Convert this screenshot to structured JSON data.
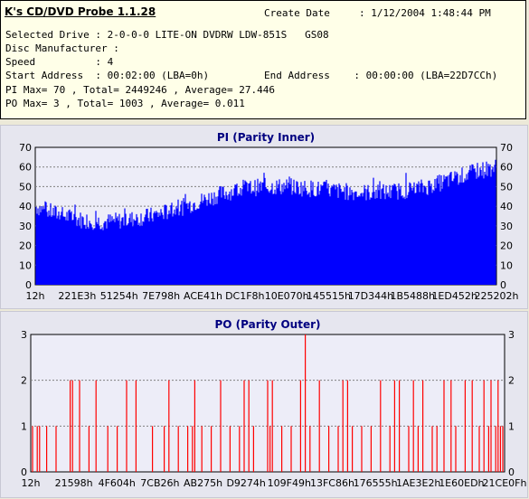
{
  "app": {
    "title": "K's CD/DVD Probe 1.1.28",
    "create_date_label": "Create Date",
    "create_date_value": ": 1/12/2004 1:48:44 PM"
  },
  "info": {
    "drive": "Selected Drive : 2-0-0-0 LITE-ON DVDRW LDW-851S   GS08",
    "manufacturer": "Disc Manufacturer :",
    "speed": "Speed          : 4",
    "start_address": "Start Address  : 00:02:00 (LBA=0h)",
    "end_address": "End Address    : 00:00:00 (LBA=22D7CCh)",
    "pi_stats": "PI Max= 70 , Total= 2449246 , Average= 27.446",
    "po_stats": "PO Max= 3 , Total= 1003 , Average= 0.011"
  },
  "chart_data": [
    {
      "type": "bar",
      "title": "PI (Parity Inner)",
      "color": "#0000ff",
      "ylim": [
        0,
        70
      ],
      "yticks": [
        0,
        10,
        20,
        30,
        40,
        50,
        60,
        70
      ],
      "x_tick_labels": [
        "12h",
        "221E3h",
        "51254h",
        "7E798h",
        "ACE41h",
        "DC1F8h",
        "10E070h",
        "145515h",
        "17D344h",
        "1B5488h",
        "1ED452h",
        "225202h"
      ],
      "profile": [
        [
          0,
          40
        ],
        [
          0.02,
          38
        ],
        [
          0.05,
          36
        ],
        [
          0.1,
          33
        ],
        [
          0.15,
          32
        ],
        [
          0.2,
          33
        ],
        [
          0.25,
          35
        ],
        [
          0.3,
          38
        ],
        [
          0.35,
          42
        ],
        [
          0.4,
          46
        ],
        [
          0.45,
          49
        ],
        [
          0.5,
          50
        ],
        [
          0.55,
          50
        ],
        [
          0.6,
          49
        ],
        [
          0.65,
          48
        ],
        [
          0.7,
          47
        ],
        [
          0.75,
          47
        ],
        [
          0.8,
          48
        ],
        [
          0.85,
          50
        ],
        [
          0.88,
          52
        ],
        [
          0.92,
          55
        ],
        [
          0.96,
          58
        ],
        [
          1.0,
          60
        ]
      ]
    },
    {
      "type": "bar",
      "title": "PO (Parity Outer)",
      "color": "#ff0000",
      "ylim": [
        0,
        3
      ],
      "yticks": [
        0,
        1,
        2,
        3
      ],
      "x_tick_labels": [
        "12h",
        "21598h",
        "4F604h",
        "7CB26h",
        "AB275h",
        "D9274h",
        "109F49h",
        "13FC86h",
        "176555h",
        "1AE3E2h",
        "1E60EDh",
        "21CE0Fh"
      ],
      "peaks": [
        [
          0.0,
          1
        ],
        [
          0.01,
          1
        ],
        [
          0.015,
          1
        ],
        [
          0.03,
          1
        ],
        [
          0.05,
          1
        ],
        [
          0.08,
          2
        ],
        [
          0.085,
          2
        ],
        [
          0.1,
          2
        ],
        [
          0.12,
          1
        ],
        [
          0.135,
          2
        ],
        [
          0.16,
          1
        ],
        [
          0.18,
          1
        ],
        [
          0.2,
          2
        ],
        [
          0.22,
          2
        ],
        [
          0.255,
          1
        ],
        [
          0.28,
          1
        ],
        [
          0.29,
          2
        ],
        [
          0.31,
          1
        ],
        [
          0.33,
          1
        ],
        [
          0.34,
          1
        ],
        [
          0.345,
          2
        ],
        [
          0.36,
          1
        ],
        [
          0.38,
          1
        ],
        [
          0.4,
          2
        ],
        [
          0.42,
          1
        ],
        [
          0.44,
          1
        ],
        [
          0.45,
          2
        ],
        [
          0.46,
          2
        ],
        [
          0.47,
          1
        ],
        [
          0.5,
          2
        ],
        [
          0.505,
          1
        ],
        [
          0.51,
          2
        ],
        [
          0.53,
          1
        ],
        [
          0.55,
          1
        ],
        [
          0.57,
          2
        ],
        [
          0.58,
          3
        ],
        [
          0.59,
          1
        ],
        [
          0.61,
          2
        ],
        [
          0.63,
          1
        ],
        [
          0.65,
          1
        ],
        [
          0.66,
          2
        ],
        [
          0.67,
          2
        ],
        [
          0.68,
          1
        ],
        [
          0.7,
          1
        ],
        [
          0.72,
          1
        ],
        [
          0.74,
          2
        ],
        [
          0.76,
          1
        ],
        [
          0.77,
          2
        ],
        [
          0.78,
          2
        ],
        [
          0.8,
          1
        ],
        [
          0.81,
          2
        ],
        [
          0.82,
          1
        ],
        [
          0.83,
          2
        ],
        [
          0.85,
          1
        ],
        [
          0.86,
          1
        ],
        [
          0.875,
          2
        ],
        [
          0.89,
          2
        ],
        [
          0.9,
          1
        ],
        [
          0.92,
          2
        ],
        [
          0.935,
          2
        ],
        [
          0.95,
          1
        ],
        [
          0.96,
          2
        ],
        [
          0.97,
          1
        ],
        [
          0.975,
          2
        ],
        [
          0.985,
          1
        ],
        [
          0.99,
          2
        ],
        [
          0.995,
          1
        ],
        [
          1.0,
          1
        ]
      ]
    }
  ]
}
